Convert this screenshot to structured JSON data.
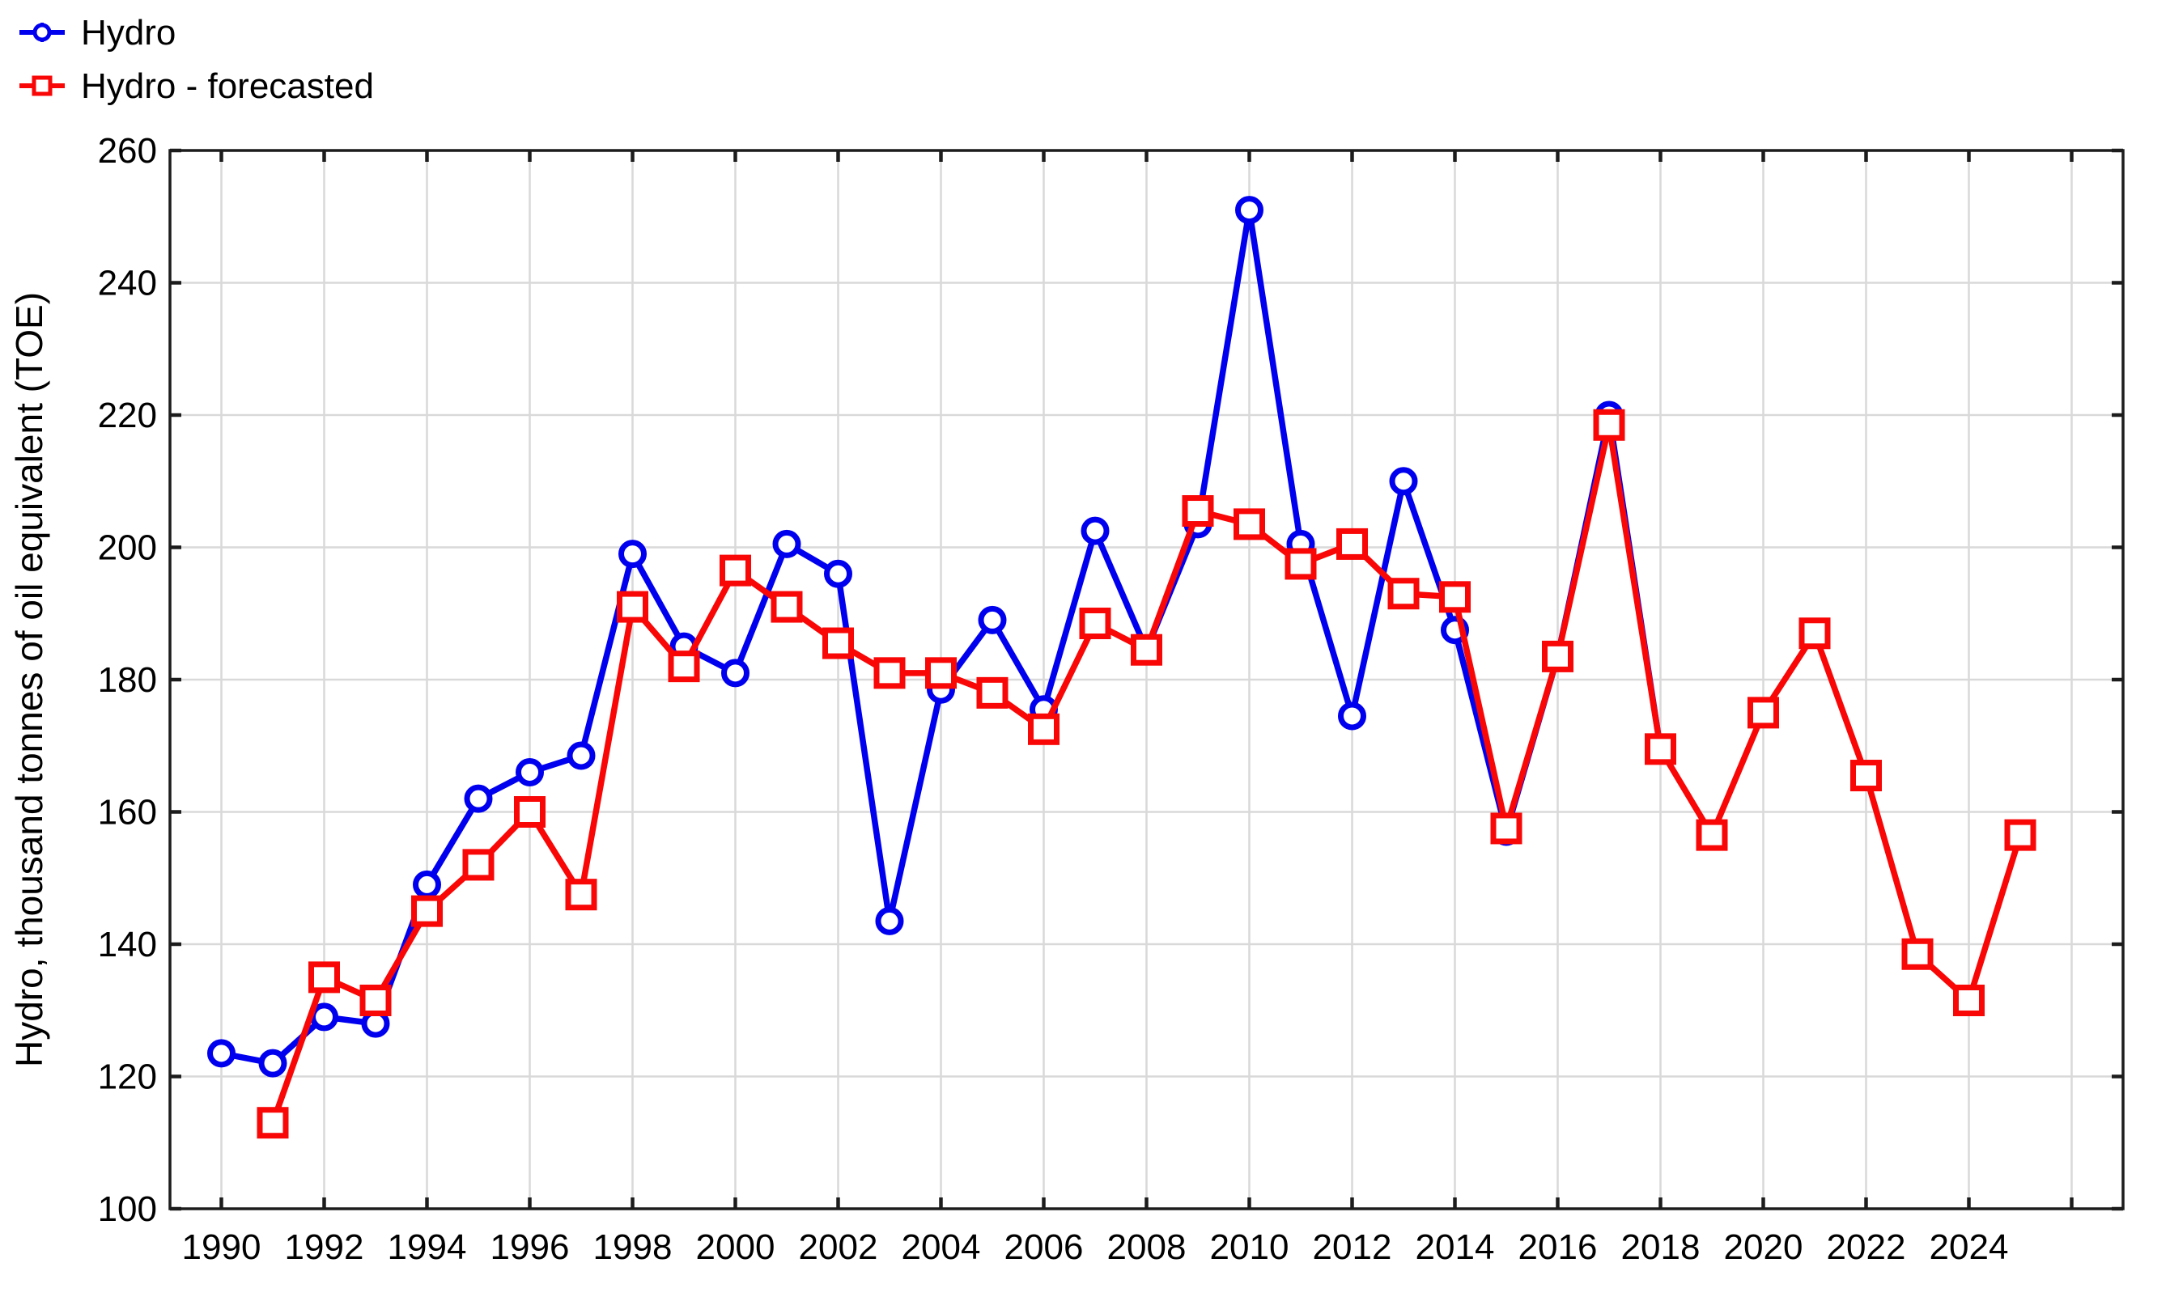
{
  "legend": {
    "items": [
      {
        "label": "Hydro",
        "color": "#0000EF",
        "marker": "circle"
      },
      {
        "label": "Hydro - forecasted",
        "color": "#F90606",
        "marker": "square"
      }
    ]
  },
  "colors": {
    "background": "#ffffff",
    "grid": "#d9d9d9",
    "frame": "#1c1c1c",
    "text": "#000000",
    "hydro_blue": "#0000EF",
    "forecast_red": "#F90606"
  },
  "chart_data": {
    "type": "line",
    "title": "",
    "xlabel": "",
    "ylabel": "Hydro, thousand tonnes of oil equivalent  (TOE)",
    "x_domain": [
      1989,
      2027
    ],
    "ylim": [
      100,
      260
    ],
    "y_ticks": [
      100,
      120,
      140,
      160,
      180,
      200,
      220,
      240,
      260
    ],
    "x_label_years": [
      1990,
      1992,
      1994,
      1996,
      1998,
      2000,
      2002,
      2004,
      2006,
      2008,
      2010,
      2012,
      2014,
      2016,
      2018,
      2020,
      2022,
      2024
    ],
    "x_grid_years": [
      1990,
      1992,
      1994,
      1996,
      1998,
      2000,
      2002,
      2004,
      2006,
      2008,
      2010,
      2012,
      2014,
      2016,
      2018,
      2020,
      2022,
      2024,
      2026
    ],
    "grid": true,
    "legend_position": "top-left",
    "series": [
      {
        "name": "Hydro",
        "color": "#0000EF",
        "marker": "circle",
        "x": [
          1990,
          1991,
          1992,
          1993,
          1994,
          1995,
          1996,
          1997,
          1998,
          1999,
          2000,
          2001,
          2002,
          2003,
          2004,
          2005,
          2006,
          2007,
          2008,
          2009,
          2010,
          2011,
          2012,
          2013,
          2014,
          2015,
          2016,
          2017,
          2018
        ],
        "y": [
          123.5,
          122,
          129,
          128,
          149,
          162,
          166,
          168.5,
          199,
          185,
          181,
          200.5,
          196,
          143.5,
          178.5,
          189,
          175.5,
          202.5,
          184.5,
          203.5,
          251,
          200.5,
          174.5,
          210,
          187.5,
          157,
          183.5,
          220,
          169.5
        ]
      },
      {
        "name": "Hydro - forecasted",
        "color": "#F90606",
        "marker": "square",
        "x": [
          1991,
          1992,
          1993,
          1994,
          1995,
          1996,
          1997,
          1998,
          1999,
          2000,
          2001,
          2002,
          2003,
          2004,
          2005,
          2006,
          2007,
          2008,
          2009,
          2010,
          2011,
          2012,
          2013,
          2014,
          2015,
          2016,
          2017,
          2018,
          2019,
          2020,
          2021,
          2022,
          2023,
          2024,
          2025
        ],
        "y": [
          113,
          135,
          131.5,
          145,
          152,
          160,
          147.5,
          191,
          182,
          196.5,
          191,
          185.5,
          181,
          181,
          178,
          172.5,
          188.5,
          184.5,
          205.5,
          203.5,
          197.5,
          200.5,
          193,
          192.5,
          157.5,
          183.5,
          218.5,
          169.5,
          156.5,
          175,
          187,
          165.5,
          138.5,
          131.5,
          156.5
        ]
      }
    ]
  }
}
